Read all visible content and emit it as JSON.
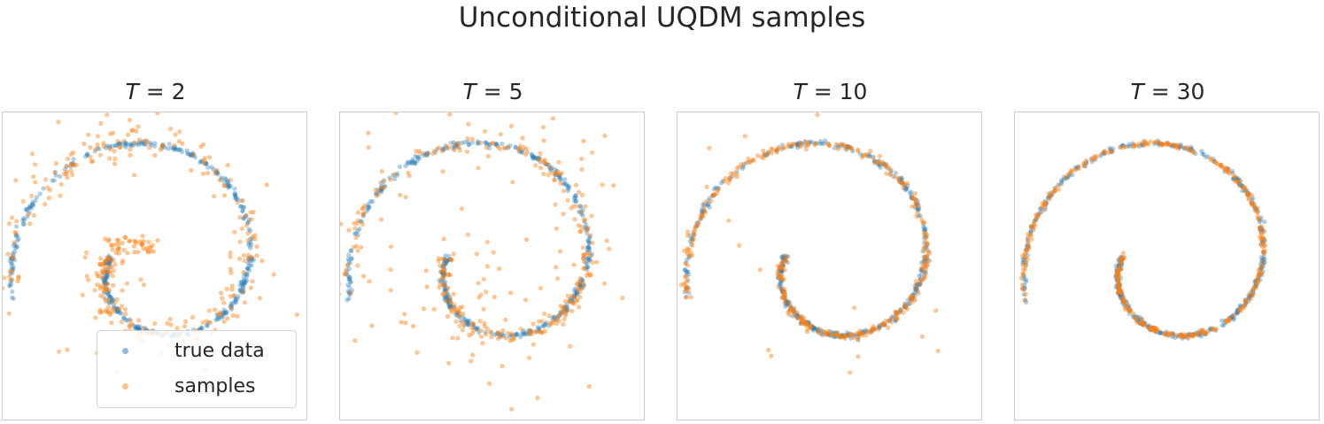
{
  "title": "Unconditional UQDM samples",
  "colors": {
    "true_data": "#1f77b4",
    "samples": "#ff7f0e",
    "frame": "#cccccc"
  },
  "legend": {
    "placement": "lower-center of first panel",
    "true_data_label": "true data",
    "samples_label": "samples"
  },
  "chart_data": [
    {
      "type": "scatter",
      "title_var": "T",
      "title_rest": " = 2",
      "T": 2,
      "sample_spread": 0.55,
      "sample_outliers": 0.12,
      "inner_collapse": true
    },
    {
      "type": "scatter",
      "title_var": "T",
      "title_rest": " = 5",
      "T": 5,
      "sample_spread": 0.25,
      "sample_outliers": 0.35,
      "inner_collapse": false
    },
    {
      "type": "scatter",
      "title_var": "T",
      "title_rest": " = 10",
      "T": 10,
      "sample_spread": 0.12,
      "sample_outliers": 0.04,
      "inner_collapse": false
    },
    {
      "type": "scatter",
      "title_var": "T",
      "title_rest": " = 30",
      "T": 30,
      "sample_spread": 0.08,
      "sample_outliers": 0.0,
      "inner_collapse": false
    }
  ]
}
